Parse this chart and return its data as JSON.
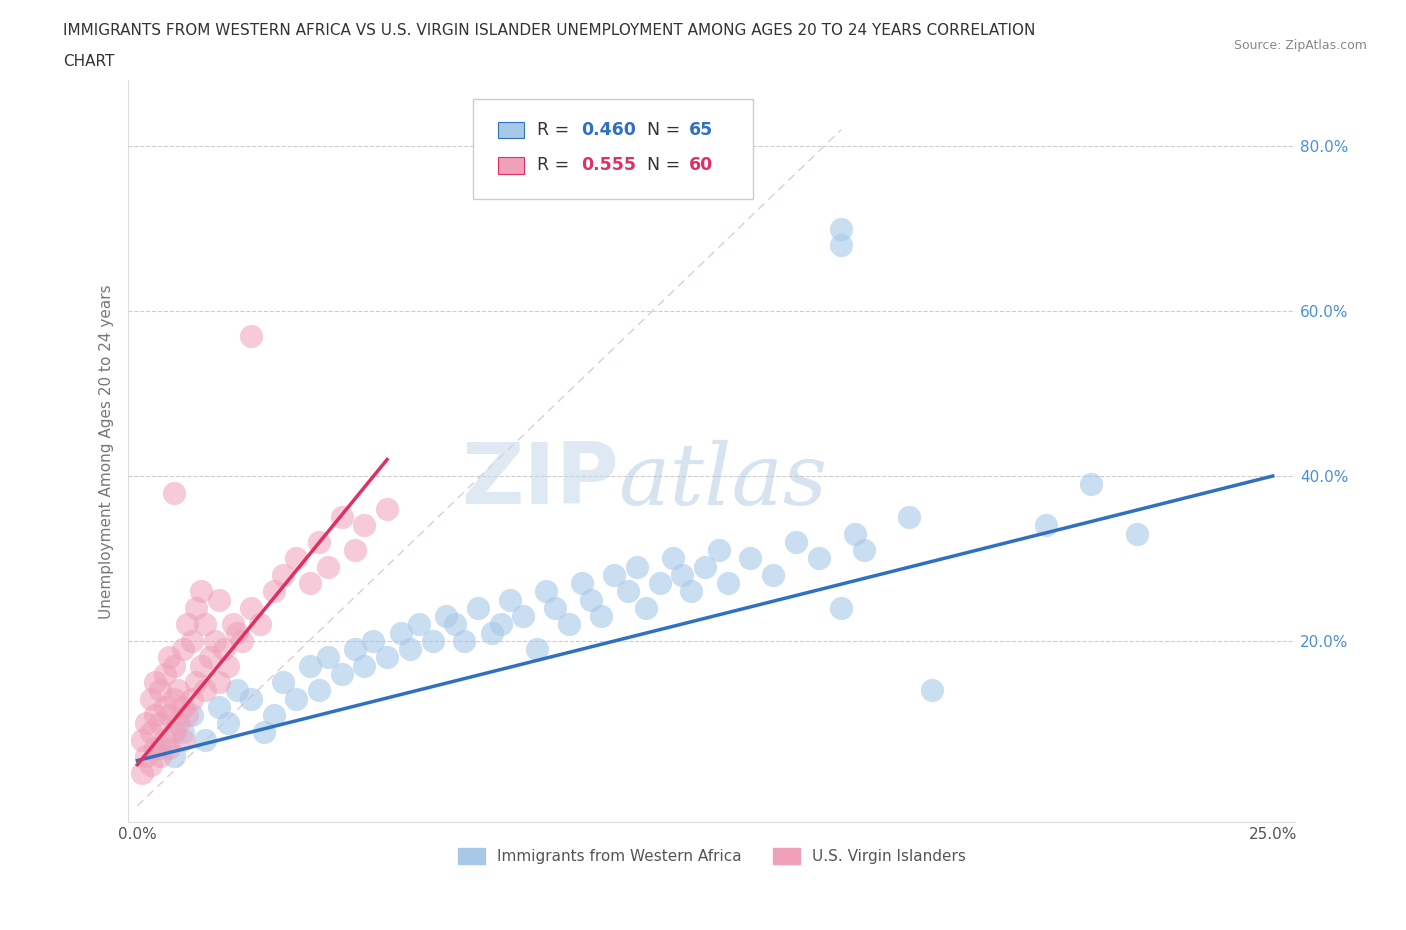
{
  "title_line1": "IMMIGRANTS FROM WESTERN AFRICA VS U.S. VIRGIN ISLANDER UNEMPLOYMENT AMONG AGES 20 TO 24 YEARS CORRELATION",
  "title_line2": "CHART",
  "source": "Source: ZipAtlas.com",
  "ylabel": "Unemployment Among Ages 20 to 24 years",
  "legend_label1": "Immigrants from Western Africa",
  "legend_label2": "U.S. Virgin Islanders",
  "R1": 0.46,
  "N1": 65,
  "R2": 0.555,
  "N2": 60,
  "xlim": [
    -0.002,
    0.255
  ],
  "ylim": [
    -0.02,
    0.88
  ],
  "color1": "#a8c8e8",
  "color2": "#f0a0b8",
  "trendline1_color": "#3070c0",
  "trendline2_color": "#e03060",
  "ytick_color": "#4a90d9",
  "xtick_color": "#555555",
  "watermark_zip_color": "#c8d8e8",
  "watermark_atlas_color": "#c8d8e8"
}
